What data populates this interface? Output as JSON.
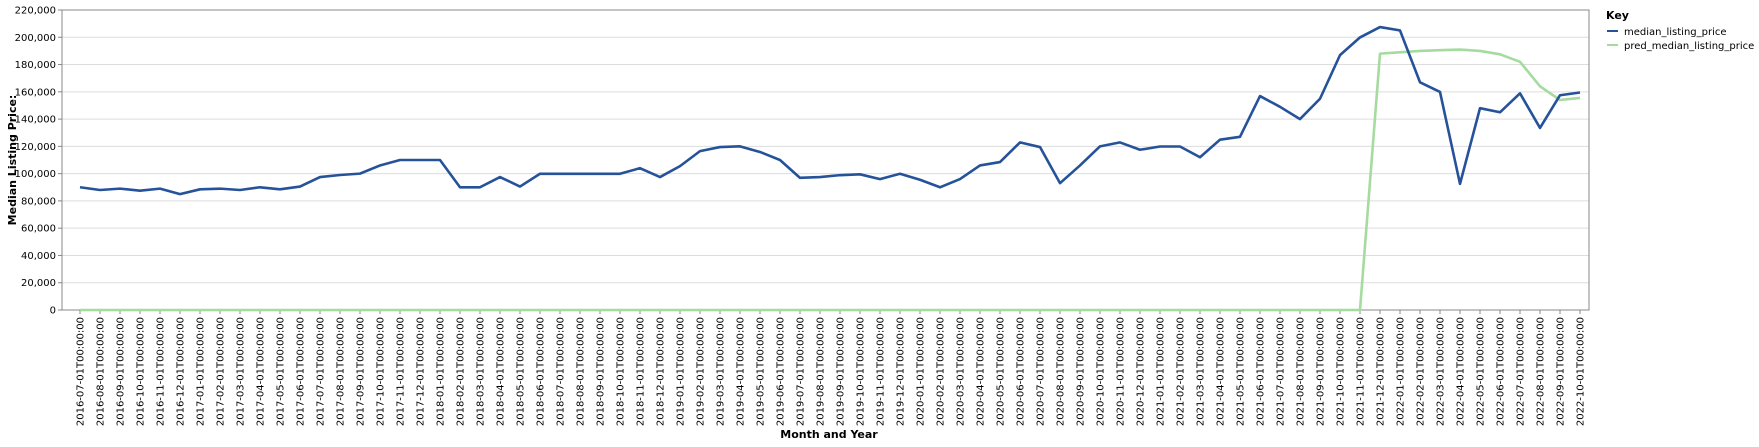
{
  "chart_data": {
    "type": "line",
    "xlabel": "Month and Year",
    "ylabel": "Median Listing Price:",
    "ylim": [
      0,
      220000
    ],
    "y_ticks": [
      "0",
      "20,000",
      "40,000",
      "60,000",
      "80,000",
      "100,000",
      "120,000",
      "140,000",
      "160,000",
      "180,000",
      "200,000",
      "220,000"
    ],
    "y_tick_values": [
      0,
      20000,
      40000,
      60000,
      80000,
      100000,
      120000,
      140000,
      160000,
      180000,
      200000,
      220000
    ],
    "grid": true,
    "legend": {
      "title": "Key",
      "placement": "top-right"
    },
    "x": [
      "2016-07-01T00:00:00",
      "2016-08-01T00:00:00",
      "2016-09-01T00:00:00",
      "2016-10-01T00:00:00",
      "2016-11-01T00:00:00",
      "2016-12-01T00:00:00",
      "2017-01-01T00:00:00",
      "2017-02-01T00:00:00",
      "2017-03-01T00:00:00",
      "2017-04-01T00:00:00",
      "2017-05-01T00:00:00",
      "2017-06-01T00:00:00",
      "2017-07-01T00:00:00",
      "2017-08-01T00:00:00",
      "2017-09-01T00:00:00",
      "2017-10-01T00:00:00",
      "2017-11-01T00:00:00",
      "2017-12-01T00:00:00",
      "2018-01-01T00:00:00",
      "2018-02-01T00:00:00",
      "2018-03-01T00:00:00",
      "2018-04-01T00:00:00",
      "2018-05-01T00:00:00",
      "2018-06-01T00:00:00",
      "2018-07-01T00:00:00",
      "2018-08-01T00:00:00",
      "2018-09-01T00:00:00",
      "2018-10-01T00:00:00",
      "2018-11-01T00:00:00",
      "2018-12-01T00:00:00",
      "2019-01-01T00:00:00",
      "2019-02-01T00:00:00",
      "2019-03-01T00:00:00",
      "2019-04-01T00:00:00",
      "2019-05-01T00:00:00",
      "2019-06-01T00:00:00",
      "2019-07-01T00:00:00",
      "2019-08-01T00:00:00",
      "2019-09-01T00:00:00",
      "2019-10-01T00:00:00",
      "2019-11-01T00:00:00",
      "2019-12-01T00:00:00",
      "2020-01-01T00:00:00",
      "2020-02-01T00:00:00",
      "2020-03-01T00:00:00",
      "2020-04-01T00:00:00",
      "2020-05-01T00:00:00",
      "2020-06-01T00:00:00",
      "2020-07-01T00:00:00",
      "2020-08-01T00:00:00",
      "2020-09-01T00:00:00",
      "2020-10-01T00:00:00",
      "2020-11-01T00:00:00",
      "2020-12-01T00:00:00",
      "2021-01-01T00:00:00",
      "2021-02-01T00:00:00",
      "2021-03-01T00:00:00",
      "2021-04-01T00:00:00",
      "2021-05-01T00:00:00",
      "2021-06-01T00:00:00",
      "2021-07-01T00:00:00",
      "2021-08-01T00:00:00",
      "2021-09-01T00:00:00",
      "2021-10-01T00:00:00",
      "2021-11-01T00:00:00",
      "2021-12-01T00:00:00",
      "2022-01-01T00:00:00",
      "2022-02-01T00:00:00",
      "2022-03-01T00:00:00",
      "2022-04-01T00:00:00",
      "2022-05-01T00:00:00",
      "2022-06-01T00:00:00",
      "2022-07-01T00:00:00",
      "2022-08-01T00:00:00",
      "2022-09-01T00:00:00",
      "2022-10-01T00:00:00"
    ],
    "series": [
      {
        "name": "median_listing_price",
        "color": "#26529a",
        "values": [
          90000,
          88000,
          89000,
          87500,
          89000,
          85000,
          88500,
          89000,
          88000,
          90000,
          88500,
          90500,
          97500,
          99000,
          100000,
          106000,
          110000,
          110000,
          110000,
          90000,
          90000,
          97500,
          90500,
          99900,
          99900,
          99900,
          99900,
          99900,
          104000,
          97500,
          105500,
          116500,
          119500,
          120000,
          115900,
          110000,
          96900,
          97500,
          98900,
          99500,
          96000,
          99900,
          95500,
          90000,
          96000,
          106000,
          108500,
          122900,
          119500,
          93000,
          106000,
          120000,
          122900,
          117500,
          119900,
          119900,
          112000,
          124900,
          127000,
          156900,
          149000,
          140000,
          154900,
          186900,
          199900,
          207500,
          205000,
          167000,
          159900,
          92500,
          148000,
          145000,
          158900,
          133500,
          157500,
          159500
        ]
      },
      {
        "name": "pred_median_listing_price",
        "color": "#a6dba0",
        "values": [
          0,
          0,
          0,
          0,
          0,
          0,
          0,
          0,
          0,
          0,
          0,
          0,
          0,
          0,
          0,
          0,
          0,
          0,
          0,
          0,
          0,
          0,
          0,
          0,
          0,
          0,
          0,
          0,
          0,
          0,
          0,
          0,
          0,
          0,
          0,
          0,
          0,
          0,
          0,
          0,
          0,
          0,
          0,
          0,
          0,
          0,
          0,
          0,
          0,
          0,
          0,
          0,
          0,
          0,
          0,
          0,
          0,
          0,
          0,
          0,
          0,
          0,
          0,
          0,
          0,
          188000,
          189000,
          190000,
          190500,
          191000,
          190000,
          187500,
          182000,
          164000,
          154000,
          155500
        ]
      }
    ]
  }
}
